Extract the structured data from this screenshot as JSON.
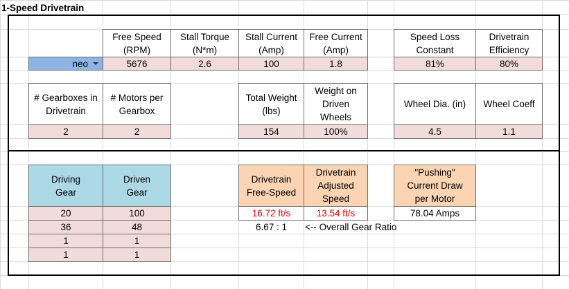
{
  "title": "1-Speed Drivetrain",
  "motor": {
    "select_value": "neo",
    "headers": [
      "Free Speed\n(RPM)",
      "Stall Torque\n(N*m)",
      "Stall Current\n(Amp)",
      "Free Current\n(Amp)"
    ],
    "values": [
      "5676",
      "2.6",
      "100",
      "1.8"
    ]
  },
  "loss": {
    "headers": [
      "Speed Loss\nConstant",
      "Drivetrain\nEfficiency"
    ],
    "values": [
      "81%",
      "80%"
    ]
  },
  "config": {
    "headers": [
      "# Gearboxes in\nDrivetrain",
      "# Motors per\nGearbox"
    ],
    "values": [
      "2",
      "2"
    ]
  },
  "weight": {
    "headers": [
      "Total Weight\n(lbs)",
      "Weight on\nDriven\nWheels"
    ],
    "values": [
      "154",
      "100%"
    ]
  },
  "wheel": {
    "headers": [
      "Wheel Dia. (in)",
      "Wheel Coeff"
    ],
    "values": [
      "4.5",
      "1.1"
    ]
  },
  "gears": {
    "headers": [
      "Driving\nGear",
      "Driven\nGear"
    ],
    "rows": [
      [
        "20",
        "100"
      ],
      [
        "36",
        "48"
      ],
      [
        "1",
        "1"
      ],
      [
        "1",
        "1"
      ]
    ]
  },
  "results": {
    "headers": [
      "Drivetrain\nFree-Speed",
      "Drivetrain\nAdjusted\nSpeed"
    ],
    "values": [
      "16.72 ft/s",
      "13.54 ft/s"
    ],
    "gear_ratio": "6.67 : 1",
    "gear_ratio_note": "<-- Overall Gear Ratio"
  },
  "pushing": {
    "header": "\"Pushing\"\nCurrent Draw\nper Motor",
    "value": "78.04 Amps"
  },
  "colors": {
    "input_fill": "#f2dcdb",
    "gear_header_fill": "#add8e6",
    "result_header_fill": "#fbd4b4",
    "dropdown_fill": "#8eb4e3",
    "result_text": "#e00000"
  }
}
